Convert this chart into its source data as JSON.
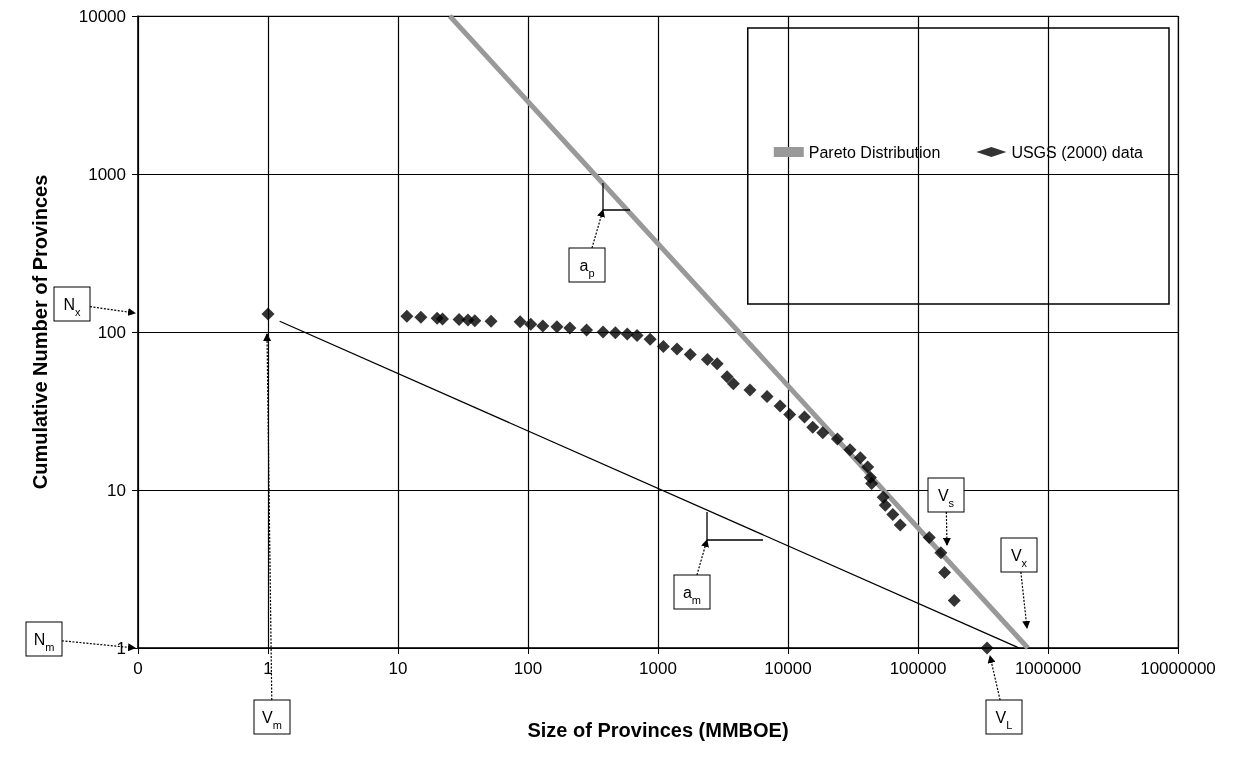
{
  "chart_data": {
    "type": "scatter",
    "xlabel": "Size of Provinces (MMBOE)",
    "ylabel": "Cumulative Number of Provinces",
    "log": "xy",
    "grid": true,
    "legend": "top right",
    "xlim": [
      0.1,
      10000000
    ],
    "xticks": [
      {
        "value": 0.1,
        "label": "0"
      },
      1,
      10,
      100,
      1000,
      10000,
      100000,
      1000000,
      10000000
    ],
    "ylim": [
      1,
      10000
    ],
    "yticks": [
      1,
      10,
      100,
      1000,
      10000
    ],
    "series": [
      {
        "name": "Pareto Distribution",
        "type": "line",
        "color": "#999999",
        "x": [
          25,
          700000
        ],
        "values": [
          10000,
          1
        ]
      },
      {
        "type": "line",
        "color": "#000000",
        "x": [
          1.23,
          600000
        ],
        "values": [
          117,
          1
        ]
      },
      {
        "name": "USGS (2000) data",
        "marker": "diamond",
        "color": "#000000",
        "x": [
          1,
          11.7,
          15,
          20,
          22,
          29.5,
          34.5,
          39,
          52,
          87,
          105,
          130,
          167,
          210,
          282,
          378,
          470,
          580,
          690,
          870,
          1100,
          1400,
          1770,
          2400,
          2850,
          3400,
          3800,
          5100,
          6900,
          8700,
          10300,
          13400,
          15500,
          18500,
          24000,
          30000,
          36000,
          41000,
          43000,
          44000,
          54000,
          56000,
          64000,
          73000,
          122000,
          150000,
          160000,
          190000,
          340000
        ],
        "values": [
          130,
          126,
          124,
          122,
          121,
          120,
          119,
          118,
          117,
          116,
          112,
          109,
          108,
          106,
          103,
          100,
          99,
          97,
          95,
          90,
          81,
          78,
          72,
          67,
          63,
          52,
          47,
          43,
          39,
          34,
          30,
          29,
          25,
          23,
          21,
          18,
          16,
          14,
          12,
          11,
          9,
          8,
          7,
          6,
          5,
          4,
          3,
          2,
          1
        ]
      }
    ],
    "annotations": [
      "a$_{p}$",
      "a$_{m}$",
      "N$_{x}$",
      "N$_{m}$",
      "V$_{m}$",
      "V$_{L}$",
      "V$_{s}$",
      "V$_{x}$"
    ]
  }
}
